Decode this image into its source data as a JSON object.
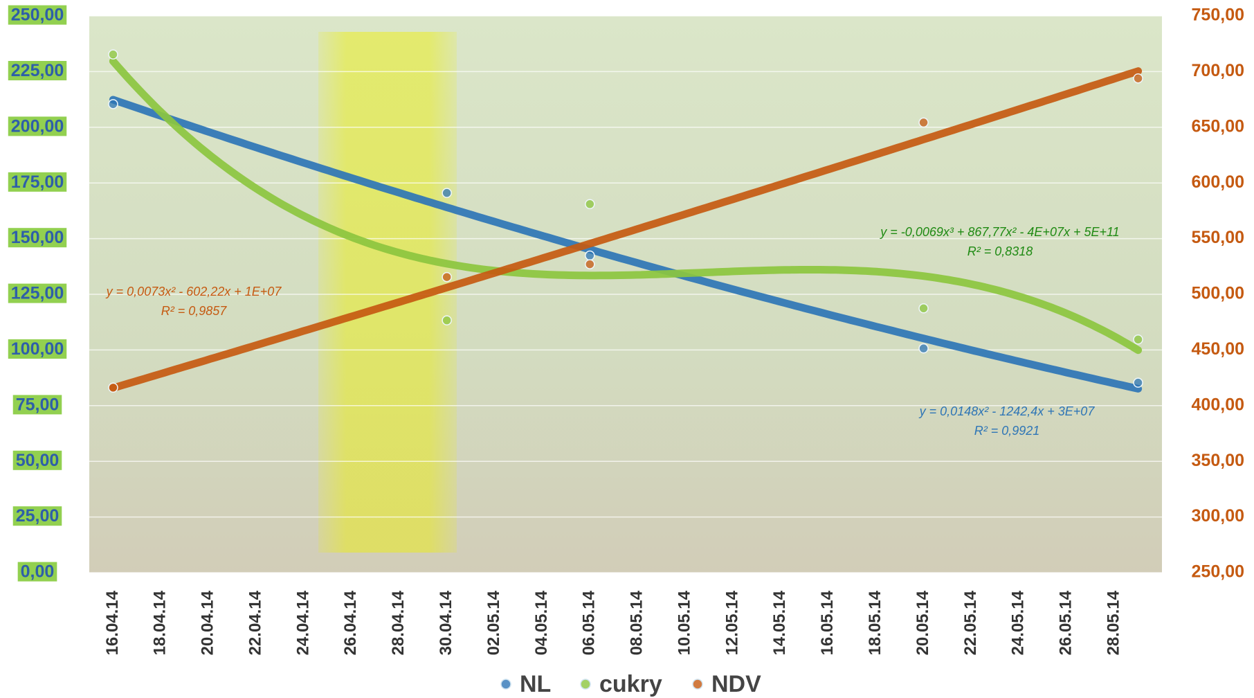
{
  "chart_data": {
    "type": "scatter",
    "x": [
      "16.04.14",
      "30.04.14",
      "06.05.14",
      "20.05.14",
      "29.05.14"
    ],
    "xlim": [
      "15.04.14",
      "30.05.14"
    ],
    "xticks": [
      "16.04.14",
      "18.04.14",
      "20.04.14",
      "22.04.14",
      "24.04.14",
      "26.04.14",
      "28.04.14",
      "30.04.14",
      "02.05.14",
      "04.05.14",
      "06.05.14",
      "08.05.14",
      "10.05.14",
      "12.05.14",
      "14.05.14",
      "16.05.14",
      "18.05.14",
      "20.05.14",
      "22.05.14",
      "24.05.14",
      "26.05.14",
      "28.05.14"
    ],
    "ylim": [
      0,
      250
    ],
    "yticks": [
      {
        "value": 0,
        "label": "0,00"
      },
      {
        "value": 25,
        "label": "25,00"
      },
      {
        "value": 50,
        "label": "50,00"
      },
      {
        "value": 75,
        "label": "75,00"
      },
      {
        "value": 100,
        "label": "100,00"
      },
      {
        "value": 125,
        "label": "125,00"
      },
      {
        "value": 150,
        "label": "150,00"
      },
      {
        "value": 175,
        "label": "175,00"
      },
      {
        "value": 200,
        "label": "200,00"
      },
      {
        "value": 225,
        "label": "225,00"
      },
      {
        "value": 250,
        "label": "250,00"
      }
    ],
    "y2lim": [
      250,
      750
    ],
    "y2ticks": [
      {
        "value": 250,
        "label": "250,00"
      },
      {
        "value": 300,
        "label": "300,00"
      },
      {
        "value": 350,
        "label": "350,00"
      },
      {
        "value": 400,
        "label": "400,00"
      },
      {
        "value": 450,
        "label": "450,00"
      },
      {
        "value": 500,
        "label": "500,00"
      },
      {
        "value": 550,
        "label": "550,00"
      },
      {
        "value": 600,
        "label": "600,00"
      },
      {
        "value": 650,
        "label": "650,00"
      },
      {
        "value": 700,
        "label": "700,00"
      },
      {
        "value": 750,
        "label": "750,00"
      }
    ],
    "grid": true,
    "legend": "bottom",
    "series": [
      {
        "name": "NL",
        "color": "#2e75b6",
        "values": [
          210.4,
          170.5,
          142.4,
          100.7,
          85.3
        ],
        "trendline_order": 2,
        "equation": "y = 0,0148x² - 1242,4x + 3E+07",
        "r2": "R² = 0,9921"
      },
      {
        "name": "cukry",
        "color": "#8cc63f",
        "values": [
          232.7,
          113.3,
          165.5,
          118.7,
          104.7
        ],
        "trendline_order": 3,
        "equation": "y = -0,0069x³ + 867,77x² - 4E+07x + 5E+11",
        "r2": "R² = 0,8318"
      },
      {
        "name": "NDV",
        "color": "#c55a11",
        "axis": "y2",
        "values": [
          416.2,
          515.5,
          527,
          654.3,
          693.9
        ],
        "trendline_order": 2,
        "equation": "y = 0,0073x² - 602,22x + 1E+07",
        "r2": "R² = 0,9857"
      }
    ]
  }
}
